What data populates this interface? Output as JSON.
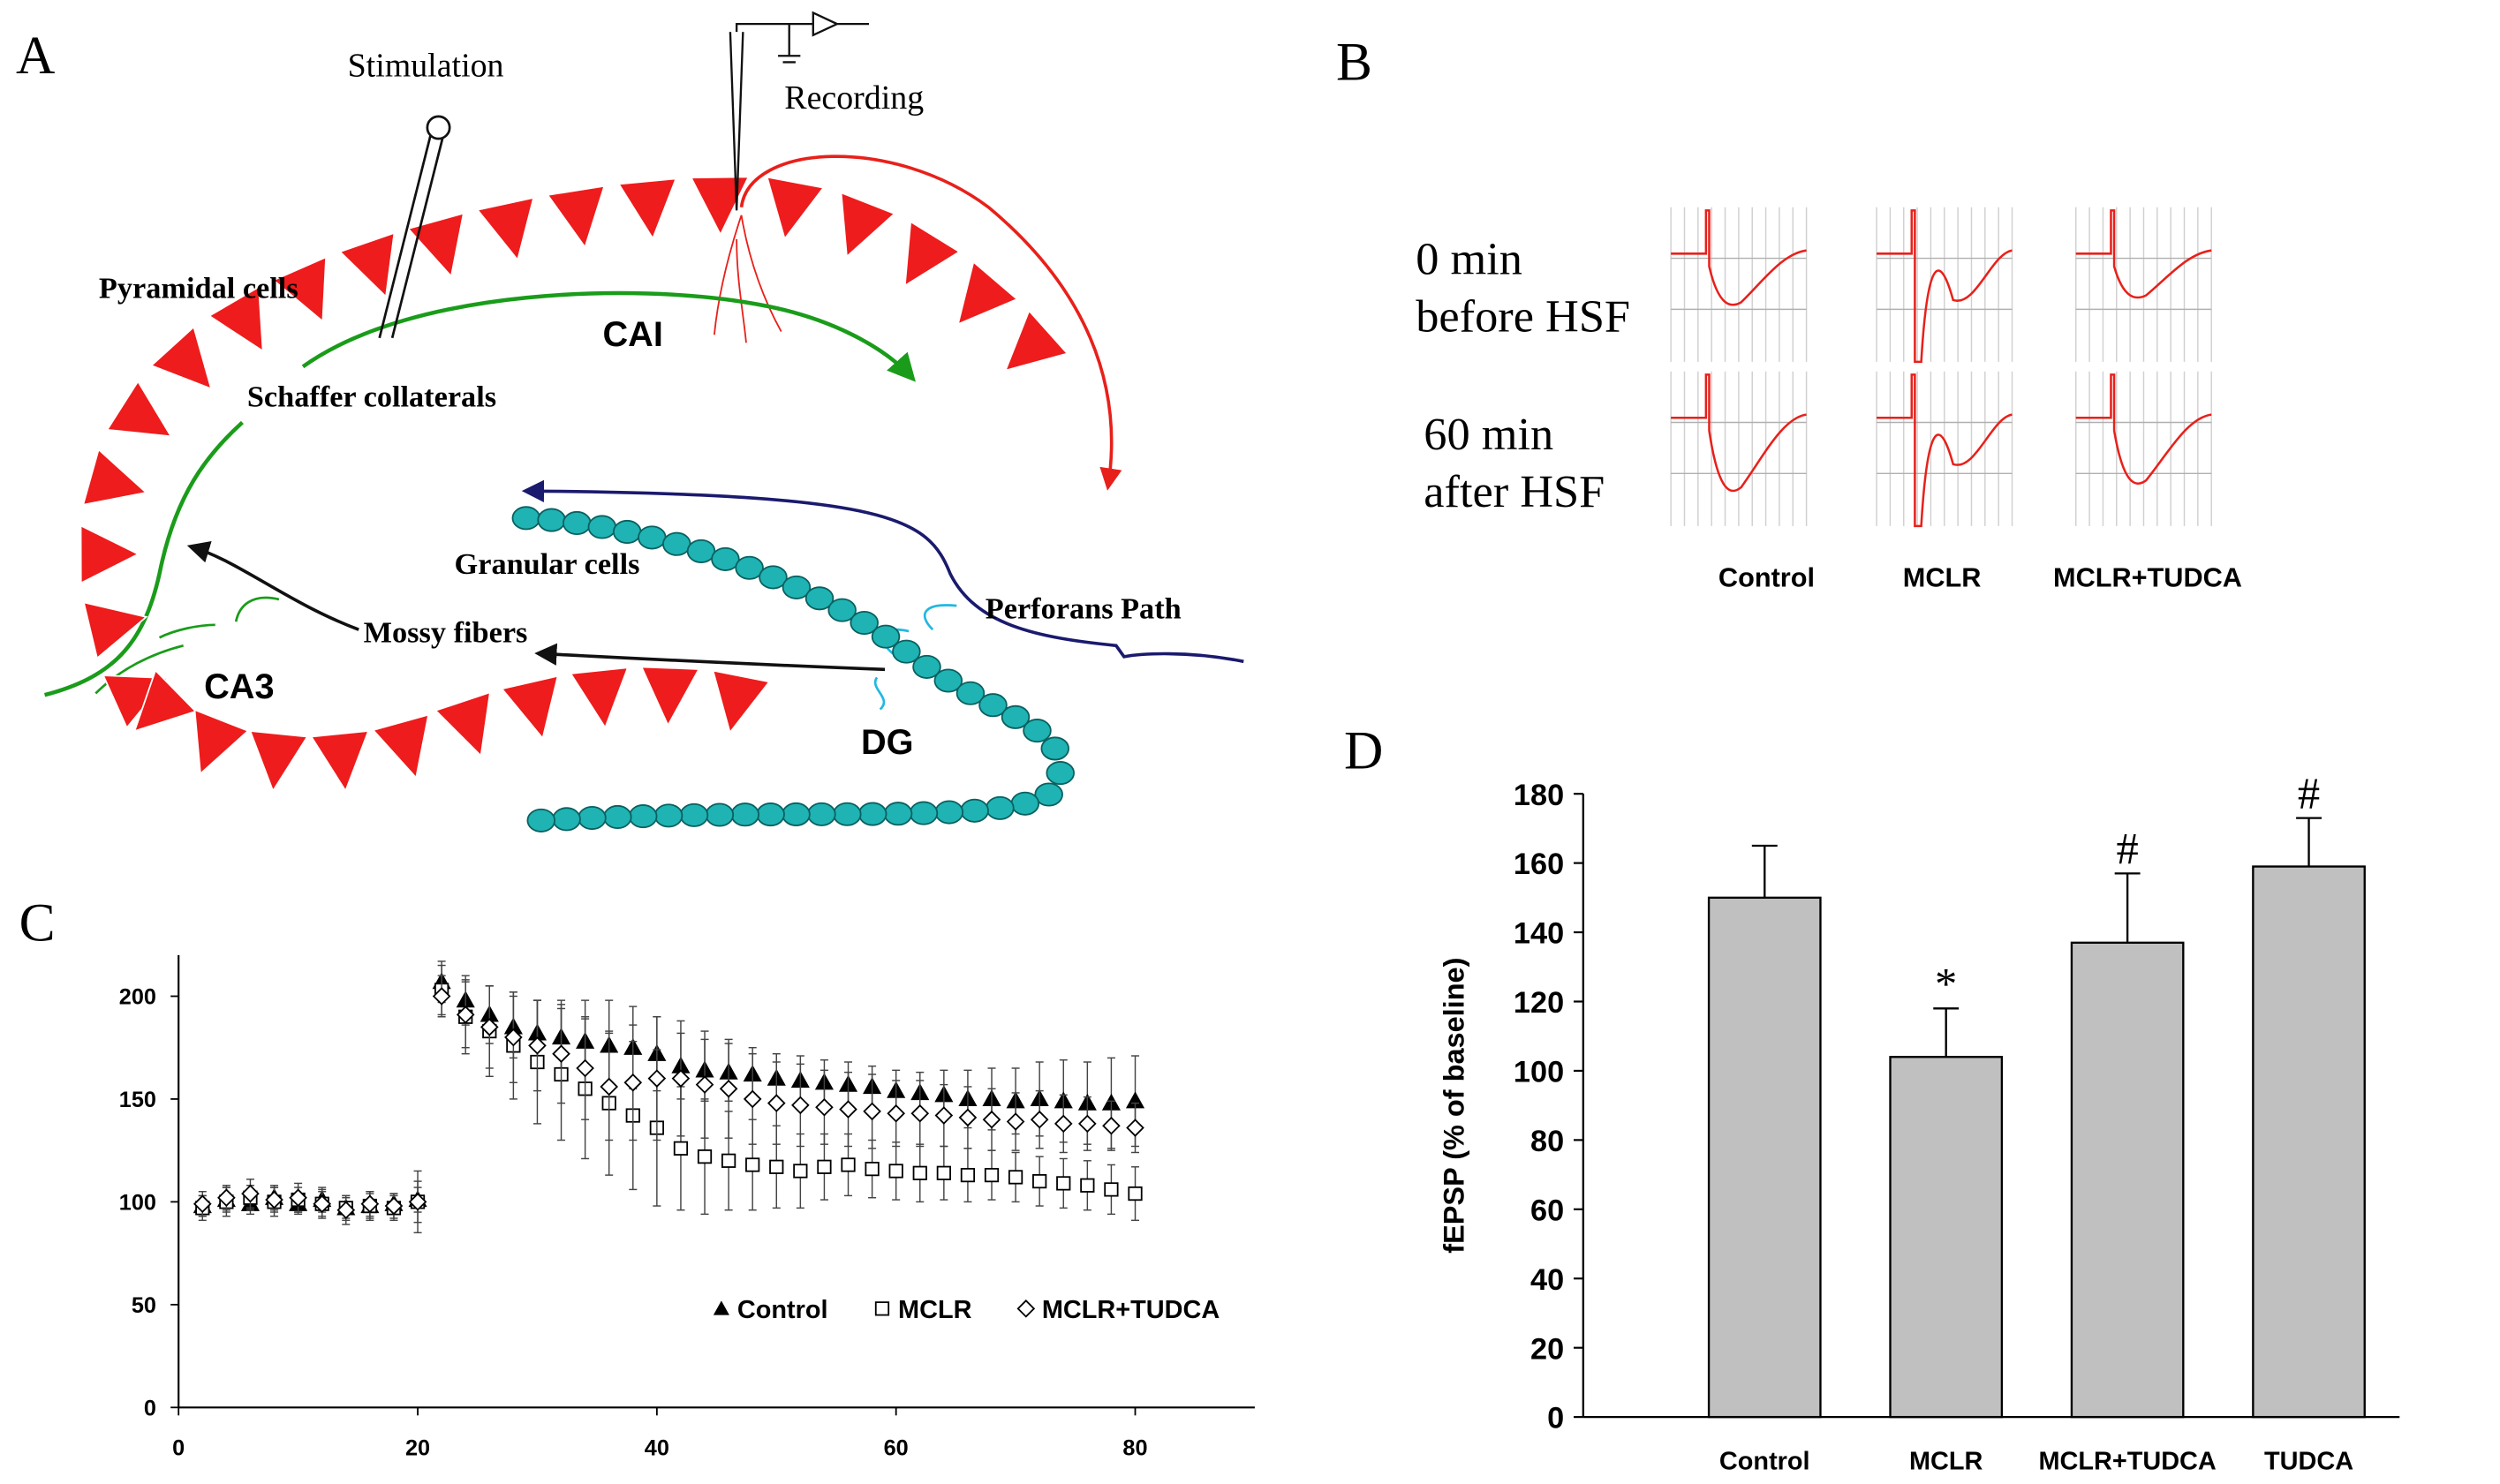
{
  "panels": {
    "a": "A",
    "b": "B",
    "c": "C",
    "d": "D"
  },
  "diagram": {
    "stimulation": "Stimulation",
    "recording": "Recording",
    "pyramidal_cells": "Pyramidal cells",
    "ca1": "CAI",
    "schaffer": "Schaffer collaterals",
    "granular": "Granular cells",
    "perforans": "Perforans Path",
    "mossy": "Mossy fibers",
    "ca3": "CA3",
    "dg": "DG"
  },
  "traces": {
    "rows": [
      [
        "0 min",
        "before HSF"
      ],
      [
        "60 min",
        "after HSF"
      ]
    ],
    "columns": [
      "Control",
      "MCLR",
      "MCLR+TUDCA"
    ]
  },
  "chart_data": [
    {
      "type": "scatter",
      "x": [
        2,
        4,
        6,
        8,
        10,
        12,
        14,
        16,
        18,
        20,
        22,
        24,
        26,
        28,
        30,
        32,
        34,
        36,
        38,
        40,
        42,
        44,
        46,
        48,
        50,
        52,
        54,
        56,
        58,
        60,
        62,
        64,
        66,
        68,
        70,
        72,
        74,
        76,
        78,
        80
      ],
      "xlim": [
        0,
        90
      ],
      "xticks": [
        0,
        20,
        40,
        60,
        80
      ],
      "ylim": [
        0,
        220
      ],
      "yticks": [
        0,
        50,
        100,
        150,
        200
      ],
      "legend": "lower right",
      "series": [
        {
          "name": "Control",
          "color": "#000000",
          "marker": "triangle",
          "values": [
            98,
            101,
            99,
            102,
            99,
            101,
            97,
            98,
            99,
            101,
            207,
            198,
            191,
            185,
            182,
            180,
            178,
            176,
            175,
            172,
            166,
            164,
            163,
            162,
            160,
            159,
            158,
            157,
            156,
            154,
            153,
            152,
            150,
            150,
            149,
            150,
            149,
            148,
            148,
            149
          ],
          "errors": [
            5,
            6,
            5,
            6,
            5,
            6,
            5,
            6,
            5,
            6,
            10,
            12,
            14,
            15,
            16,
            18,
            20,
            22,
            20,
            18,
            16,
            15,
            14,
            13,
            12,
            12,
            11,
            11,
            10,
            10,
            10,
            12,
            14,
            15,
            16,
            18,
            20,
            20,
            22,
            22
          ]
        },
        {
          "name": "MCLR",
          "color": "#000000",
          "marker": "square",
          "values": [
            97,
            100,
            102,
            100,
            101,
            99,
            97,
            98,
            97,
            100,
            203,
            190,
            183,
            176,
            168,
            162,
            155,
            148,
            142,
            136,
            126,
            122,
            120,
            118,
            117,
            115,
            117,
            118,
            116,
            115,
            114,
            114,
            113,
            113,
            112,
            110,
            109,
            108,
            106,
            104
          ],
          "errors": [
            6,
            7,
            6,
            7,
            6,
            7,
            6,
            7,
            6,
            15,
            12,
            18,
            22,
            26,
            30,
            32,
            34,
            35,
            36,
            38,
            30,
            28,
            24,
            22,
            20,
            18,
            16,
            15,
            14,
            14,
            14,
            13,
            13,
            12,
            12,
            12,
            12,
            12,
            12,
            13
          ]
        },
        {
          "name": "MCLR+TUDCA",
          "color": "#000000",
          "marker": "diamond",
          "values": [
            99,
            102,
            104,
            101,
            102,
            99,
            96,
            99,
            98,
            100,
            200,
            191,
            185,
            180,
            176,
            172,
            165,
            156,
            158,
            160,
            160,
            157,
            155,
            150,
            148,
            147,
            146,
            145,
            144,
            143,
            143,
            142,
            141,
            140,
            139,
            140,
            138,
            138,
            137,
            136
          ],
          "errors": [
            6,
            6,
            7,
            6,
            7,
            6,
            7,
            6,
            6,
            10,
            10,
            16,
            20,
            22,
            22,
            24,
            25,
            26,
            28,
            30,
            28,
            26,
            24,
            22,
            20,
            20,
            18,
            18,
            18,
            16,
            16,
            15,
            15,
            15,
            14,
            14,
            14,
            13,
            12,
            12
          ]
        }
      ]
    },
    {
      "type": "bar",
      "y_label": "fEPSP (% of baseline)",
      "categories": [
        "Control",
        "MCLR",
        "MCLR+TUDCA",
        "TUDCA"
      ],
      "values": [
        150,
        104,
        137,
        159
      ],
      "errors": [
        15,
        14,
        20,
        14
      ],
      "markers": [
        null,
        "*",
        "#",
        "#"
      ],
      "color": "#c0c0c0",
      "ylim": [
        0,
        180
      ],
      "yticks": [
        0,
        20,
        40,
        60,
        80,
        100,
        120,
        140,
        160,
        180
      ]
    }
  ]
}
